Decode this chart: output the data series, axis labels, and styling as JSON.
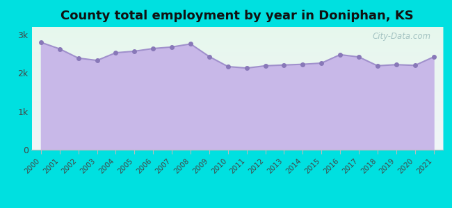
{
  "title": "County total employment by year in Doniphan, KS",
  "years": [
    2000,
    2001,
    2002,
    2003,
    2004,
    2005,
    2006,
    2007,
    2008,
    2009,
    2010,
    2011,
    2012,
    2013,
    2014,
    2015,
    2016,
    2017,
    2018,
    2019,
    2020,
    2021
  ],
  "values": [
    2800,
    2630,
    2390,
    2330,
    2530,
    2570,
    2640,
    2680,
    2760,
    2430,
    2170,
    2130,
    2190,
    2210,
    2230,
    2260,
    2480,
    2420,
    2190,
    2220,
    2200,
    2420
  ],
  "line_color": "#a090cc",
  "fill_color": "#c8b8e8",
  "marker_color": "#8878b8",
  "background_outer": "#00e0e0",
  "background_inner_top": "#e8f8f0",
  "background_inner_bottom": "#e8f0ff",
  "ytick_labels": [
    "0",
    "1k",
    "2k",
    "3k"
  ],
  "ytick_values": [
    0,
    1000,
    2000,
    3000
  ],
  "ylim": [
    0,
    3200
  ],
  "title_fontsize": 13,
  "watermark": "City-Data.com"
}
